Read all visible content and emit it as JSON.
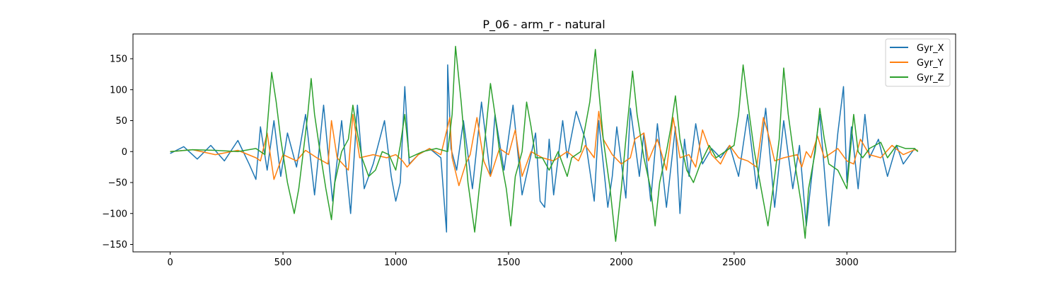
{
  "chart_data": {
    "type": "line",
    "title": "P_06 - arm_r - natural",
    "xlabel": "",
    "ylabel": "",
    "xlim": [
      -165,
      3482
    ],
    "ylim": [
      -162,
      190
    ],
    "xticks": [
      0,
      500,
      1000,
      1500,
      2000,
      2500,
      3000
    ],
    "yticks": [
      -150,
      -100,
      -50,
      0,
      50,
      100,
      150
    ],
    "grid": false,
    "legend_position": "top-right",
    "colors": {
      "Gyr_X": "#1f77b4",
      "Gyr_Y": "#ff7f0e",
      "Gyr_Z": "#2ca02c"
    },
    "series": [
      {
        "name": "Gyr_X",
        "points": [
          [
            0,
            -3
          ],
          [
            60,
            8
          ],
          [
            120,
            -12
          ],
          [
            180,
            10
          ],
          [
            240,
            -15
          ],
          [
            300,
            18
          ],
          [
            350,
            -20
          ],
          [
            380,
            -45
          ],
          [
            400,
            40
          ],
          [
            430,
            -30
          ],
          [
            460,
            50
          ],
          [
            490,
            -40
          ],
          [
            520,
            30
          ],
          [
            560,
            -25
          ],
          [
            600,
            60
          ],
          [
            640,
            -70
          ],
          [
            680,
            75
          ],
          [
            720,
            -80
          ],
          [
            760,
            50
          ],
          [
            800,
            -100
          ],
          [
            830,
            75
          ],
          [
            860,
            -60
          ],
          [
            900,
            -20
          ],
          [
            950,
            50
          ],
          [
            980,
            -40
          ],
          [
            1000,
            -80
          ],
          [
            1020,
            -50
          ],
          [
            1040,
            105
          ],
          [
            1060,
            -20
          ],
          [
            1100,
            -5
          ],
          [
            1150,
            5
          ],
          [
            1200,
            -10
          ],
          [
            1225,
            -130
          ],
          [
            1230,
            140
          ],
          [
            1245,
            5
          ],
          [
            1270,
            -30
          ],
          [
            1300,
            50
          ],
          [
            1340,
            -60
          ],
          [
            1380,
            80
          ],
          [
            1420,
            -40
          ],
          [
            1440,
            60
          ],
          [
            1480,
            -30
          ],
          [
            1520,
            75
          ],
          [
            1560,
            -70
          ],
          [
            1600,
            -5
          ],
          [
            1620,
            30
          ],
          [
            1640,
            -80
          ],
          [
            1660,
            -90
          ],
          [
            1680,
            20
          ],
          [
            1700,
            -70
          ],
          [
            1740,
            50
          ],
          [
            1760,
            -10
          ],
          [
            1800,
            65
          ],
          [
            1840,
            20
          ],
          [
            1860,
            -30
          ],
          [
            1880,
            -80
          ],
          [
            1900,
            50
          ],
          [
            1940,
            -90
          ],
          [
            1960,
            -40
          ],
          [
            1980,
            40
          ],
          [
            2020,
            -75
          ],
          [
            2040,
            70
          ],
          [
            2080,
            -40
          ],
          [
            2100,
            30
          ],
          [
            2130,
            -80
          ],
          [
            2160,
            45
          ],
          [
            2200,
            -90
          ],
          [
            2240,
            40
          ],
          [
            2260,
            -100
          ],
          [
            2280,
            20
          ],
          [
            2300,
            -40
          ],
          [
            2330,
            45
          ],
          [
            2360,
            -20
          ],
          [
            2400,
            5
          ],
          [
            2440,
            -10
          ],
          [
            2480,
            10
          ],
          [
            2520,
            -40
          ],
          [
            2560,
            60
          ],
          [
            2600,
            -60
          ],
          [
            2640,
            70
          ],
          [
            2680,
            -90
          ],
          [
            2720,
            50
          ],
          [
            2760,
            -60
          ],
          [
            2790,
            10
          ],
          [
            2820,
            -120
          ],
          [
            2850,
            -20
          ],
          [
            2880,
            60
          ],
          [
            2920,
            -120
          ],
          [
            2960,
            30
          ],
          [
            2985,
            105
          ],
          [
            3000,
            -50
          ],
          [
            3020,
            40
          ],
          [
            3050,
            -60
          ],
          [
            3080,
            60
          ],
          [
            3100,
            -10
          ],
          [
            3140,
            20
          ],
          [
            3180,
            -40
          ],
          [
            3220,
            10
          ],
          [
            3250,
            -20
          ],
          [
            3300,
            5
          ],
          [
            3315,
            0
          ]
        ]
      },
      {
        "name": "Gyr_Y",
        "points": [
          [
            0,
            0
          ],
          [
            100,
            3
          ],
          [
            200,
            -5
          ],
          [
            300,
            2
          ],
          [
            380,
            -10
          ],
          [
            400,
            -15
          ],
          [
            430,
            30
          ],
          [
            460,
            -45
          ],
          [
            500,
            -5
          ],
          [
            560,
            -15
          ],
          [
            600,
            2
          ],
          [
            650,
            -10
          ],
          [
            700,
            -20
          ],
          [
            715,
            50
          ],
          [
            740,
            -10
          ],
          [
            790,
            -30
          ],
          [
            810,
            60
          ],
          [
            840,
            -10
          ],
          [
            900,
            -5
          ],
          [
            960,
            -10
          ],
          [
            1000,
            -5
          ],
          [
            1030,
            -15
          ],
          [
            1050,
            -25
          ],
          [
            1100,
            -5
          ],
          [
            1150,
            5
          ],
          [
            1200,
            -5
          ],
          [
            1240,
            55
          ],
          [
            1250,
            -10
          ],
          [
            1280,
            -55
          ],
          [
            1310,
            -20
          ],
          [
            1330,
            -5
          ],
          [
            1360,
            55
          ],
          [
            1390,
            -15
          ],
          [
            1420,
            -40
          ],
          [
            1460,
            5
          ],
          [
            1500,
            -5
          ],
          [
            1530,
            35
          ],
          [
            1560,
            -40
          ],
          [
            1600,
            0
          ],
          [
            1650,
            -10
          ],
          [
            1700,
            -15
          ],
          [
            1760,
            0
          ],
          [
            1810,
            -15
          ],
          [
            1840,
            10
          ],
          [
            1880,
            -10
          ],
          [
            1900,
            65
          ],
          [
            1920,
            20
          ],
          [
            1960,
            -5
          ],
          [
            2000,
            -20
          ],
          [
            2040,
            -10
          ],
          [
            2060,
            20
          ],
          [
            2100,
            30
          ],
          [
            2120,
            -15
          ],
          [
            2160,
            20
          ],
          [
            2200,
            -30
          ],
          [
            2230,
            55
          ],
          [
            2260,
            -10
          ],
          [
            2300,
            -5
          ],
          [
            2330,
            -25
          ],
          [
            2360,
            35
          ],
          [
            2400,
            -5
          ],
          [
            2440,
            -20
          ],
          [
            2480,
            10
          ],
          [
            2520,
            -10
          ],
          [
            2560,
            -15
          ],
          [
            2600,
            -25
          ],
          [
            2630,
            55
          ],
          [
            2650,
            30
          ],
          [
            2680,
            -15
          ],
          [
            2720,
            -10
          ],
          [
            2780,
            -5
          ],
          [
            2800,
            -25
          ],
          [
            2820,
            0
          ],
          [
            2840,
            -10
          ],
          [
            2870,
            25
          ],
          [
            2900,
            -10
          ],
          [
            2960,
            5
          ],
          [
            3000,
            -15
          ],
          [
            3030,
            -20
          ],
          [
            3060,
            20
          ],
          [
            3100,
            -5
          ],
          [
            3150,
            -10
          ],
          [
            3200,
            10
          ],
          [
            3250,
            -5
          ],
          [
            3300,
            3
          ],
          [
            3315,
            2
          ]
        ]
      },
      {
        "name": "Gyr_Z",
        "points": [
          [
            0,
            0
          ],
          [
            100,
            3
          ],
          [
            200,
            2
          ],
          [
            300,
            0
          ],
          [
            380,
            5
          ],
          [
            420,
            -5
          ],
          [
            450,
            128
          ],
          [
            470,
            80
          ],
          [
            490,
            20
          ],
          [
            520,
            -50
          ],
          [
            550,
            -100
          ],
          [
            570,
            -60
          ],
          [
            590,
            0
          ],
          [
            610,
            60
          ],
          [
            625,
            118
          ],
          [
            640,
            60
          ],
          [
            660,
            10
          ],
          [
            690,
            -60
          ],
          [
            715,
            -110
          ],
          [
            730,
            -50
          ],
          [
            760,
            0
          ],
          [
            790,
            20
          ],
          [
            810,
            75
          ],
          [
            830,
            30
          ],
          [
            850,
            -10
          ],
          [
            880,
            -40
          ],
          [
            910,
            -30
          ],
          [
            940,
            0
          ],
          [
            970,
            -5
          ],
          [
            1000,
            -30
          ],
          [
            1020,
            10
          ],
          [
            1040,
            60
          ],
          [
            1060,
            -10
          ],
          [
            1090,
            -5
          ],
          [
            1120,
            0
          ],
          [
            1180,
            5
          ],
          [
            1230,
            0
          ],
          [
            1250,
            60
          ],
          [
            1265,
            170
          ],
          [
            1290,
            80
          ],
          [
            1320,
            -50
          ],
          [
            1350,
            -130
          ],
          [
            1370,
            -60
          ],
          [
            1390,
            0
          ],
          [
            1420,
            110
          ],
          [
            1440,
            60
          ],
          [
            1460,
            0
          ],
          [
            1490,
            -60
          ],
          [
            1510,
            -120
          ],
          [
            1530,
            -40
          ],
          [
            1560,
            0
          ],
          [
            1580,
            80
          ],
          [
            1600,
            40
          ],
          [
            1620,
            -10
          ],
          [
            1650,
            -10
          ],
          [
            1680,
            -30
          ],
          [
            1720,
            0
          ],
          [
            1760,
            -40
          ],
          [
            1780,
            -10
          ],
          [
            1820,
            0
          ],
          [
            1860,
            80
          ],
          [
            1885,
            165
          ],
          [
            1900,
            100
          ],
          [
            1920,
            20
          ],
          [
            1950,
            -60
          ],
          [
            1975,
            -145
          ],
          [
            2000,
            -60
          ],
          [
            2020,
            20
          ],
          [
            2050,
            130
          ],
          [
            2070,
            60
          ],
          [
            2100,
            -10
          ],
          [
            2130,
            -60
          ],
          [
            2150,
            -120
          ],
          [
            2170,
            -50
          ],
          [
            2200,
            0
          ],
          [
            2220,
            40
          ],
          [
            2240,
            90
          ],
          [
            2260,
            20
          ],
          [
            2290,
            -30
          ],
          [
            2320,
            -50
          ],
          [
            2350,
            -20
          ],
          [
            2390,
            10
          ],
          [
            2420,
            -10
          ],
          [
            2460,
            0
          ],
          [
            2500,
            10
          ],
          [
            2520,
            60
          ],
          [
            2540,
            140
          ],
          [
            2560,
            80
          ],
          [
            2590,
            0
          ],
          [
            2620,
            -60
          ],
          [
            2650,
            -120
          ],
          [
            2680,
            -40
          ],
          [
            2700,
            20
          ],
          [
            2720,
            135
          ],
          [
            2740,
            60
          ],
          [
            2770,
            -20
          ],
          [
            2800,
            -90
          ],
          [
            2815,
            -140
          ],
          [
            2830,
            -60
          ],
          [
            2860,
            0
          ],
          [
            2880,
            70
          ],
          [
            2900,
            20
          ],
          [
            2920,
            -20
          ],
          [
            2960,
            -30
          ],
          [
            3000,
            -60
          ],
          [
            3030,
            60
          ],
          [
            3050,
            0
          ],
          [
            3070,
            -10
          ],
          [
            3100,
            5
          ],
          [
            3150,
            15
          ],
          [
            3180,
            -10
          ],
          [
            3220,
            10
          ],
          [
            3260,
            5
          ],
          [
            3300,
            5
          ],
          [
            3315,
            0
          ]
        ]
      }
    ]
  }
}
